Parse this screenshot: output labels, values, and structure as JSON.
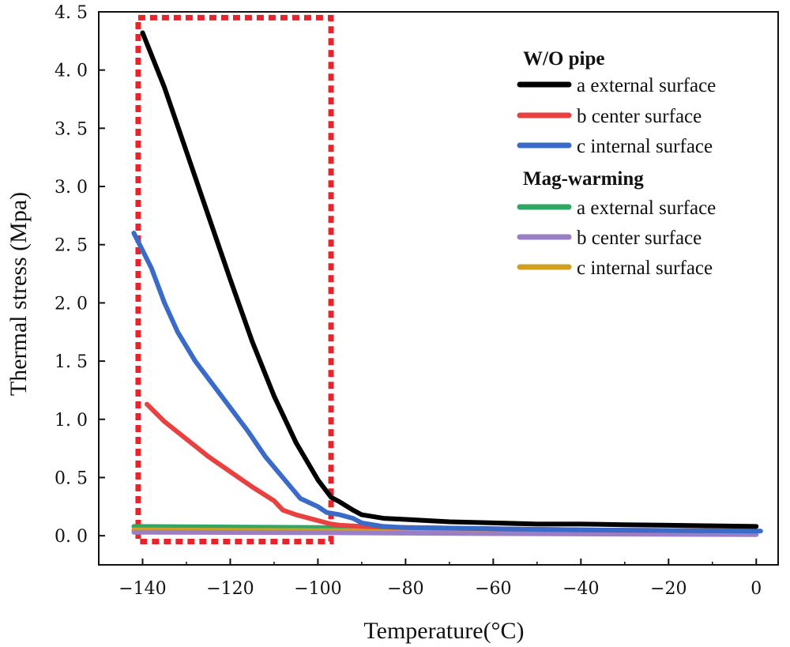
{
  "chart_data": {
    "type": "line",
    "title": "",
    "xlabel": "Temperature(°C)",
    "ylabel": "Thermal stress (Mpa)",
    "xlim": [
      -150,
      5
    ],
    "ylim": [
      -0.25,
      4.5
    ],
    "xticks": [
      -140,
      -120,
      -100,
      -80,
      -60,
      -40,
      -20,
      0
    ],
    "yticks": [
      0.0,
      0.5,
      1.0,
      1.5,
      2.0,
      2.5,
      3.0,
      3.5,
      4.0,
      4.5
    ],
    "ytick_labels": [
      "0. 0",
      "0. 5",
      "1. 0",
      "1. 5",
      "2. 0",
      "2. 5",
      "3. 0",
      "3. 5",
      "4. 0",
      "4. 5"
    ],
    "grid": false,
    "highlight_box": {
      "x_range": [
        -141,
        -97
      ],
      "y_range": [
        -0.05,
        4.45
      ],
      "color": "#e8242a",
      "style": "dotted"
    },
    "legend_groups": [
      {
        "title": "W/O pipe",
        "series": [
          0,
          1,
          2
        ]
      },
      {
        "title": "Mag-warming",
        "series": [
          3,
          4,
          5
        ]
      }
    ],
    "series": [
      {
        "name": "a external surface",
        "group": "W/O pipe",
        "color": "#000000",
        "x": [
          -140,
          -135,
          -130,
          -125,
          -120,
          -115,
          -110,
          -105,
          -100,
          -97,
          -95,
          -92,
          -90,
          -85,
          -80,
          -70,
          -60,
          -50,
          -40,
          -30,
          -20,
          -10,
          0
        ],
        "y": [
          4.32,
          3.85,
          3.3,
          2.75,
          2.2,
          1.67,
          1.2,
          0.8,
          0.48,
          0.33,
          0.29,
          0.22,
          0.18,
          0.15,
          0.14,
          0.12,
          0.11,
          0.1,
          0.1,
          0.095,
          0.09,
          0.085,
          0.08
        ]
      },
      {
        "name": "b center surface",
        "group": "W/O pipe",
        "color": "#e8413f",
        "x": [
          -139,
          -135,
          -130,
          -125,
          -120,
          -115,
          -110,
          -108,
          -105,
          -100,
          -97,
          -95,
          -90,
          -80,
          -60,
          -40,
          -20,
          0
        ],
        "y": [
          1.13,
          0.98,
          0.83,
          0.68,
          0.55,
          0.42,
          0.3,
          0.22,
          0.18,
          0.13,
          0.1,
          0.09,
          0.08,
          0.07,
          0.06,
          0.05,
          0.045,
          0.04
        ]
      },
      {
        "name": "c internal surface",
        "group": "W/O pipe",
        "color": "#3a6bc8",
        "x": [
          -142,
          -138,
          -135,
          -132,
          -128,
          -124,
          -120,
          -116,
          -112,
          -108,
          -104,
          -100,
          -98,
          -95,
          -92,
          -90,
          -85,
          -80,
          -60,
          -40,
          -20,
          0,
          1
        ],
        "y": [
          2.6,
          2.3,
          2.0,
          1.75,
          1.5,
          1.3,
          1.1,
          0.9,
          0.68,
          0.5,
          0.32,
          0.25,
          0.2,
          0.18,
          0.15,
          0.11,
          0.08,
          0.07,
          0.06,
          0.05,
          0.045,
          0.04,
          0.04
        ]
      },
      {
        "name": "a external surface",
        "group": "Mag-warming",
        "color": "#2fa866",
        "x": [
          -142,
          -120,
          -100,
          -80,
          -60,
          -40,
          -20,
          0
        ],
        "y": [
          0.08,
          0.075,
          0.07,
          0.06,
          0.05,
          0.04,
          0.035,
          0.03
        ]
      },
      {
        "name": "b center surface",
        "group": "Mag-warming",
        "color": "#9b7fc4",
        "x": [
          -142,
          -120,
          -100,
          -80,
          -60,
          -40,
          -20,
          0
        ],
        "y": [
          0.03,
          0.028,
          0.026,
          0.022,
          0.018,
          0.015,
          0.012,
          0.01
        ]
      },
      {
        "name": "c internal surface",
        "group": "Mag-warming",
        "color": "#d2a020",
        "x": [
          -142,
          -120,
          -100,
          -80,
          -60,
          -40,
          -20,
          0
        ],
        "y": [
          0.05,
          0.047,
          0.044,
          0.04,
          0.035,
          0.03,
          0.025,
          0.02
        ]
      }
    ]
  }
}
